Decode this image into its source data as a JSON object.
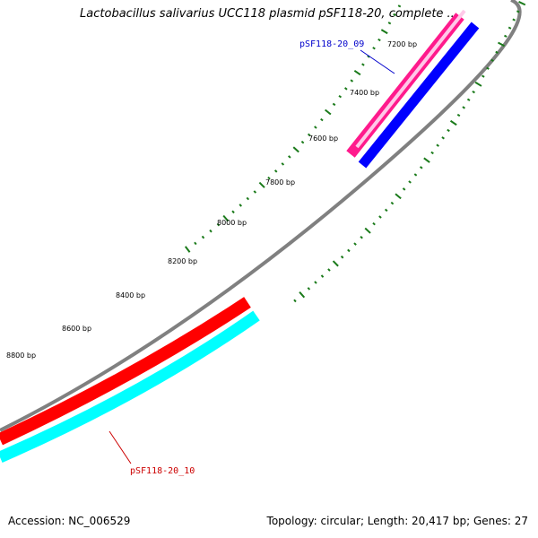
{
  "title": "Lactobacillus salivarius UCC118 plasmid pSF118-20, complete ...",
  "footer": {
    "accession": "Accession: NC_006529",
    "summary": "Topology: circular; Length: 20,417 bp; Genes: 27"
  },
  "tick_labels": [
    "7200 bp",
    "7400 bp",
    "7600 bp",
    "7800 bp",
    "8000 bp",
    "8200 bp",
    "8400 bp",
    "8600 bp",
    "8800 bp"
  ],
  "genes": [
    {
      "label": "pSF118-20_09",
      "color": "#0000cc"
    },
    {
      "label": "pSF118-20_10",
      "color": "#cc0000"
    }
  ],
  "colors": {
    "backbone": "#808080",
    "forward_cds": "#ff1a8c",
    "forward_cds_light": "#ffc8e8",
    "reverse_cds": "#0000ff",
    "red_track": "#ff0000",
    "cyan_track": "#00ffff",
    "ticks": "#1a7a1a"
  }
}
